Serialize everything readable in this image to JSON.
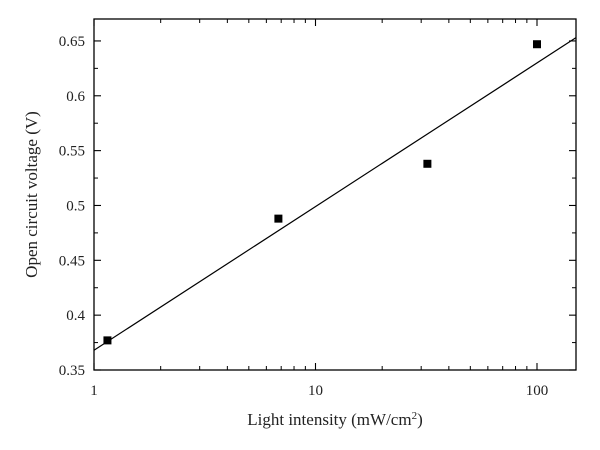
{
  "chart_data": {
    "type": "scatter",
    "title": "",
    "xlabel": "Light intensity (mW/cm²)",
    "xlabel_parts": {
      "base": "Light intensity (mW/cm",
      "superscript": "2",
      "suffix": ")"
    },
    "ylabel": "Open circuit voltage (V)",
    "x_scale": "log",
    "xlim": [
      1,
      150
    ],
    "ylim": [
      0.35,
      0.67
    ],
    "x_ticks": [
      1,
      10,
      100
    ],
    "x_tick_labels": [
      "1",
      "10",
      "100"
    ],
    "y_ticks": [
      0.35,
      0.4,
      0.45,
      0.5,
      0.55,
      0.6,
      0.65
    ],
    "y_tick_labels": [
      "0.35",
      "0.4",
      "0.45",
      "0.5",
      "0.55",
      "0.6",
      "0.65"
    ],
    "grid": false,
    "legend": "none",
    "series": [
      {
        "type": "scatter",
        "x": [
          1.15,
          6.8,
          32,
          100
        ],
        "y": [
          0.377,
          0.488,
          0.538,
          0.647
        ],
        "marker": "square",
        "color": "#000000"
      },
      {
        "type": "line",
        "x": [
          1,
          150
        ],
        "y": [
          0.368,
          0.653
        ],
        "color": "#000000"
      }
    ]
  }
}
